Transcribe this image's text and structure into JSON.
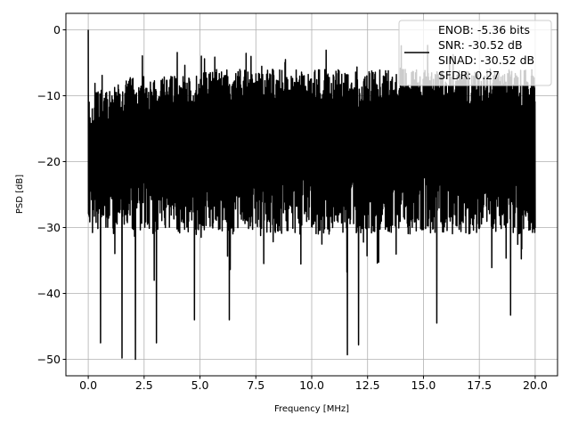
{
  "chart_data": {
    "type": "line",
    "title": "",
    "xlabel": "Frequency [MHz]",
    "ylabel": "PSD [dB]",
    "xlim": [
      -1,
      21
    ],
    "ylim": [
      -52.5,
      2.5
    ],
    "x_ticks": [
      0,
      2.5,
      5,
      7.5,
      10,
      12.5,
      15,
      17.5,
      20
    ],
    "x_tick_labels": [
      "0.0",
      "2.5",
      "5.0",
      "7.5",
      "10.0",
      "12.5",
      "15.0",
      "17.5",
      "20.0"
    ],
    "y_ticks": [
      0,
      -10,
      -20,
      -30,
      -40,
      -50
    ],
    "y_tick_labels": [
      "0",
      "−10",
      "−20",
      "−30",
      "−40",
      "−50"
    ],
    "grid": true,
    "legend_position": "top-right",
    "series": [
      {
        "name": "ENOB: -5.36 bits\nSNR: -30.52 dB\nSINAD: -30.52 dB\nSFDR: 0.27",
        "color": "#000000",
        "description": "dense noise PSD trace, 0 to 20 MHz",
        "x_range": [
          0,
          20
        ],
        "n_points": 2000,
        "peak": {
          "x": 0,
          "y": 0
        },
        "upper_envelope_db": [
          -10,
          -6,
          -5
        ],
        "typical_lower_db": -30,
        "deep_minima": [
          {
            "x": 0.55,
            "y": -47.5
          },
          {
            "x": 1.5,
            "y": -49.8
          },
          {
            "x": 2.1,
            "y": -50.0
          },
          {
            "x": 3.05,
            "y": -47.5
          },
          {
            "x": 4.75,
            "y": -44
          },
          {
            "x": 6.3,
            "y": -44
          },
          {
            "x": 11.6,
            "y": -49.3
          },
          {
            "x": 12.1,
            "y": -47.8
          },
          {
            "x": 15.6,
            "y": -44.5
          },
          {
            "x": 18.9,
            "y": -43.3
          }
        ]
      }
    ]
  },
  "legend": {
    "lines": [
      "ENOB: -5.36 bits",
      "SNR: -30.52 dB",
      "SINAD: -30.52 dB",
      "SFDR: 0.27"
    ]
  }
}
